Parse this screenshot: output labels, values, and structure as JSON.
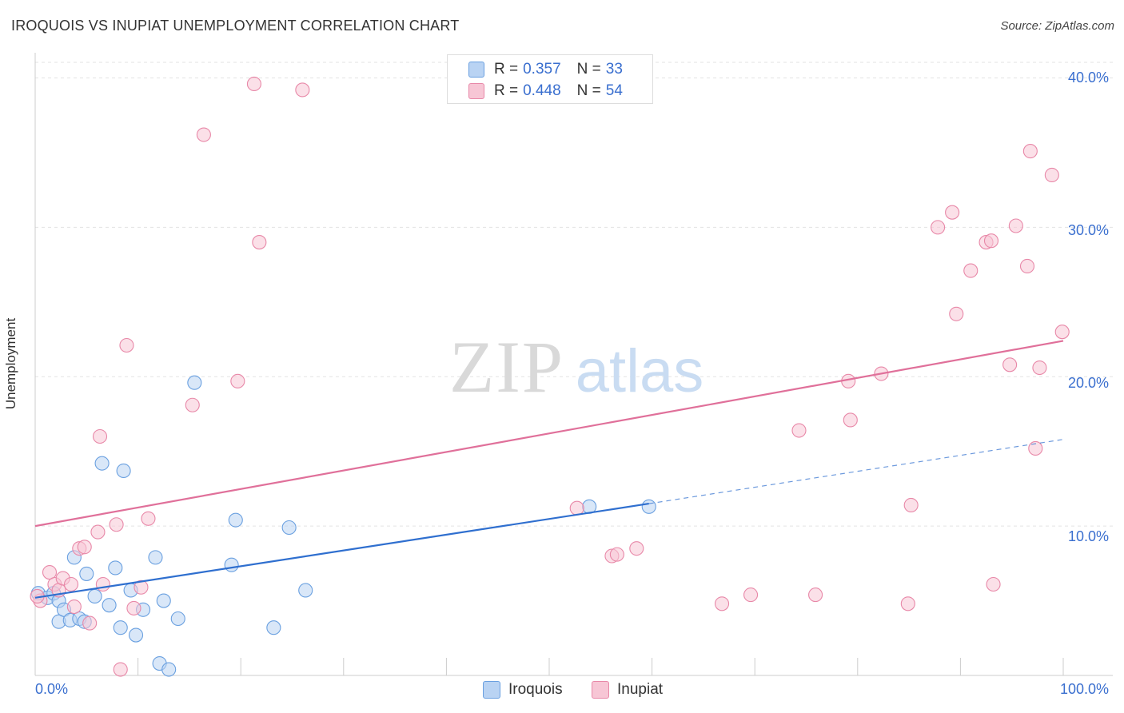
{
  "header": {
    "title": "IROQUOIS VS INUPIAT UNEMPLOYMENT CORRELATION CHART",
    "source": "Source: ZipAtlas.com"
  },
  "legend": {
    "rows": [
      {
        "r_label": "R =",
        "r_value": "0.357",
        "n_label": "N =",
        "n_value": "33"
      },
      {
        "r_label": "R =",
        "r_value": "0.448",
        "n_label": "N =",
        "n_value": "54"
      }
    ]
  },
  "watermark": {
    "zip": "ZIP",
    "atlas": "atlas"
  },
  "chart_data": {
    "type": "scatter",
    "xlabel": "",
    "ylabel": "Unemployment",
    "xlim": [
      0,
      100
    ],
    "ylim": [
      0,
      42
    ],
    "x_tick_labels": [
      "0.0%",
      "100.0%"
    ],
    "y_ticks": [
      10,
      20,
      30,
      40
    ],
    "y_tick_labels": [
      "10.0%",
      "20.0%",
      "30.0%",
      "40.0%"
    ],
    "grid": true,
    "legend_position": "top-center",
    "series": [
      {
        "name": "Iroquois",
        "color": "#6aa0e0",
        "fill": "#b9d3f3",
        "trend": {
          "x0": 0,
          "y0": 5.2,
          "x1": 59.7,
          "y1": 11.5,
          "dashed_to_x": 100,
          "dashed_to_y": 15.8,
          "color": "#2f6fcf"
        },
        "points": [
          [
            0.3,
            5.5
          ],
          [
            1.2,
            5.2
          ],
          [
            1.8,
            5.5
          ],
          [
            2.3,
            5.0
          ],
          [
            2.3,
            3.6
          ],
          [
            2.8,
            4.4
          ],
          [
            3.4,
            3.7
          ],
          [
            3.8,
            7.9
          ],
          [
            4.3,
            3.8
          ],
          [
            4.8,
            3.6
          ],
          [
            5.0,
            6.8
          ],
          [
            5.8,
            5.3
          ],
          [
            6.5,
            14.2
          ],
          [
            7.2,
            4.7
          ],
          [
            7.8,
            7.2
          ],
          [
            8.3,
            3.2
          ],
          [
            8.6,
            13.7
          ],
          [
            9.3,
            5.7
          ],
          [
            9.8,
            2.7
          ],
          [
            10.5,
            4.4
          ],
          [
            11.7,
            7.9
          ],
          [
            12.1,
            0.8
          ],
          [
            12.5,
            5.0
          ],
          [
            13.0,
            0.4
          ],
          [
            13.9,
            3.8
          ],
          [
            15.5,
            19.6
          ],
          [
            19.1,
            7.4
          ],
          [
            19.5,
            10.4
          ],
          [
            23.2,
            3.2
          ],
          [
            24.7,
            9.9
          ],
          [
            26.3,
            5.7
          ],
          [
            53.9,
            11.3
          ],
          [
            59.7,
            11.3
          ]
        ]
      },
      {
        "name": "Inupiat",
        "color": "#e888a8",
        "fill": "#f7c6d5",
        "trend": {
          "x0": 0,
          "y0": 10.0,
          "x1": 100,
          "y1": 22.4,
          "color": "#e0709a"
        },
        "points": [
          [
            0.5,
            5.0
          ],
          [
            1.4,
            6.9
          ],
          [
            1.9,
            6.1
          ],
          [
            2.3,
            5.7
          ],
          [
            2.7,
            6.5
          ],
          [
            3.5,
            6.1
          ],
          [
            3.8,
            4.6
          ],
          [
            4.3,
            8.5
          ],
          [
            4.8,
            8.6
          ],
          [
            5.3,
            3.5
          ],
          [
            6.1,
            9.6
          ],
          [
            6.3,
            16.0
          ],
          [
            6.6,
            6.1
          ],
          [
            7.9,
            10.1
          ],
          [
            8.3,
            0.4
          ],
          [
            8.9,
            22.1
          ],
          [
            9.6,
            4.5
          ],
          [
            10.3,
            5.9
          ],
          [
            11.0,
            10.5
          ],
          [
            15.3,
            18.1
          ],
          [
            16.4,
            36.2
          ],
          [
            19.7,
            19.7
          ],
          [
            21.3,
            39.6
          ],
          [
            21.8,
            29.0
          ],
          [
            26.0,
            39.2
          ],
          [
            52.7,
            11.2
          ],
          [
            56.1,
            8.0
          ],
          [
            56.6,
            8.1
          ],
          [
            58.5,
            8.5
          ],
          [
            66.8,
            4.8
          ],
          [
            69.6,
            5.4
          ],
          [
            74.3,
            16.4
          ],
          [
            75.9,
            5.4
          ],
          [
            79.1,
            19.7
          ],
          [
            79.3,
            17.1
          ],
          [
            82.3,
            20.2
          ],
          [
            84.9,
            4.8
          ],
          [
            85.2,
            11.4
          ],
          [
            87.8,
            30.0
          ],
          [
            89.2,
            31.0
          ],
          [
            89.6,
            24.2
          ],
          [
            91.0,
            27.1
          ],
          [
            92.5,
            29.0
          ],
          [
            93.0,
            29.1
          ],
          [
            93.2,
            6.1
          ],
          [
            94.8,
            20.8
          ],
          [
            95.4,
            30.1
          ],
          [
            96.5,
            27.4
          ],
          [
            96.8,
            35.1
          ],
          [
            97.3,
            15.2
          ],
          [
            97.7,
            20.6
          ],
          [
            98.9,
            33.5
          ],
          [
            99.9,
            23.0
          ],
          [
            0.2,
            5.3
          ]
        ]
      }
    ]
  }
}
